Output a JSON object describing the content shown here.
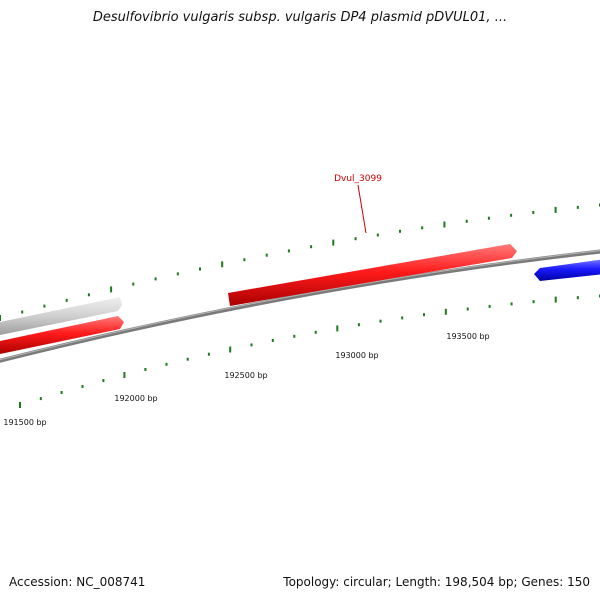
{
  "title": "Desulfovibrio vulgaris subsp. vulgaris DP4 plasmid pDVUL01, ...",
  "footer": {
    "accession": "Accession: NC_008741",
    "stats": "Topology: circular; Length: 198,504 bp; Genes: 150"
  },
  "colors": {
    "backbone": "#7a7a7a",
    "gene_forward": "#ee1111",
    "gene_reverse": "#1a1aee",
    "gene_other": "#c8c8c8",
    "ticks": "#1e7a1e",
    "label_red": "#cc0000"
  },
  "scale": {
    "ticks": [
      {
        "bp": 191500,
        "label": "191500 bp"
      },
      {
        "bp": 192000,
        "label": "192000 bp"
      },
      {
        "bp": 192500,
        "label": "192500 bp"
      },
      {
        "bp": 193000,
        "label": "193000 bp"
      },
      {
        "bp": 193500,
        "label": "193500 bp"
      }
    ]
  },
  "genes": [
    {
      "name": "",
      "strand": "forward",
      "color": "other"
    },
    {
      "name": "",
      "strand": "forward",
      "color": "forward"
    },
    {
      "name": "Dvul_3099",
      "strand": "forward",
      "color": "forward"
    },
    {
      "name": "",
      "strand": "reverse",
      "color": "reverse"
    }
  ]
}
